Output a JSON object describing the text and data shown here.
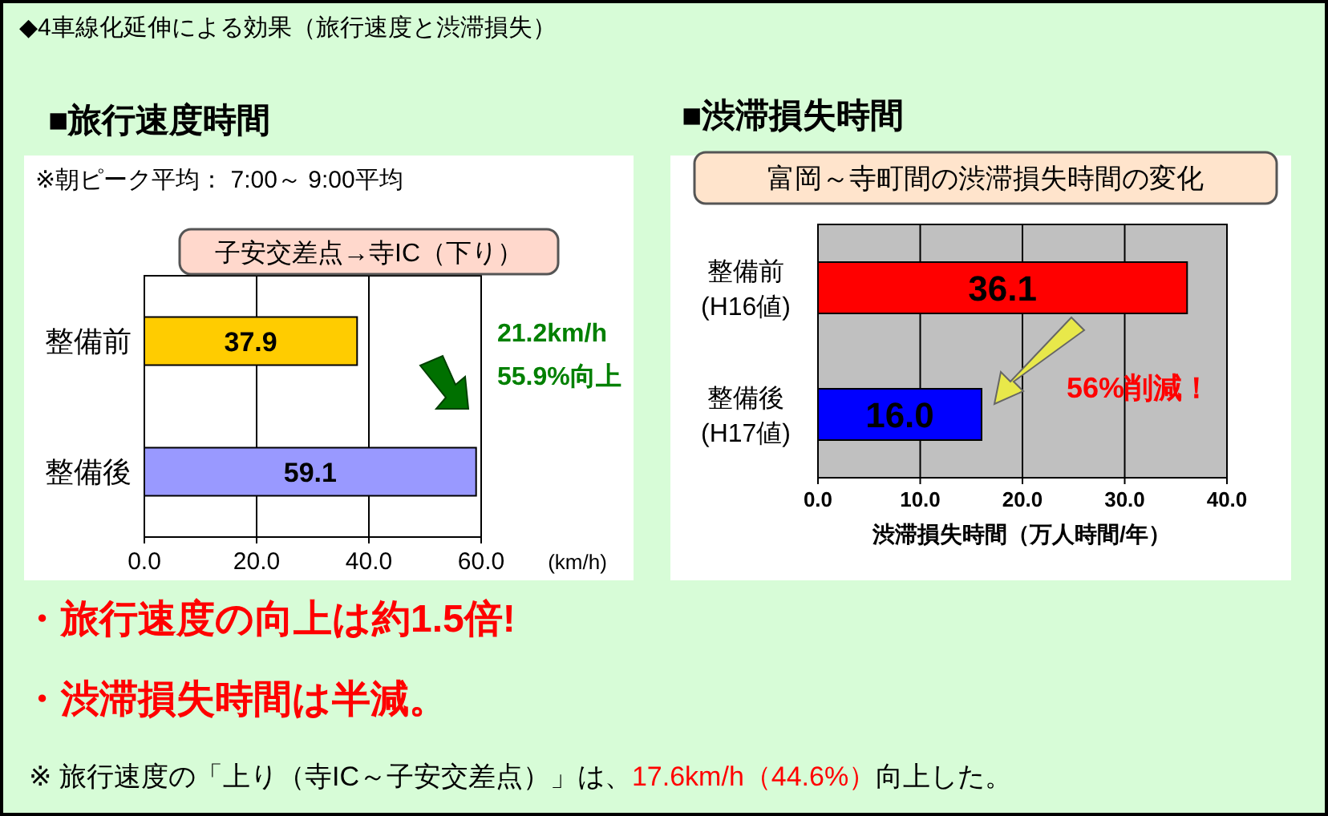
{
  "chart_data": [
    {
      "type": "bar",
      "orientation": "horizontal",
      "title": "■旅行速度時間",
      "subtitle": "※朝ピーク平均： 7:00～ 9:00平均",
      "xlabel": "(km/h)",
      "categories": [
        "整備前",
        "整備後"
      ],
      "values": [
        37.9,
        59.1
      ],
      "colors": [
        "#ffcc00",
        "#9999ff"
      ],
      "xlim": [
        0,
        60
      ],
      "xticks": [
        {
          "value": 0,
          "label": "0.0"
        },
        {
          "value": 20,
          "label": "20.0"
        },
        {
          "value": 40,
          "label": "40.0"
        },
        {
          "value": 60,
          "label": "60.0"
        }
      ],
      "grid": "x",
      "data_labels": true,
      "annotations": [
        "◆4車線化延伸による効果（旅行速度と渋滞損失）",
        "子安交差点→寺IC（下り）",
        "21.2km/h",
        "55.9%向上",
        "・旅行速度の向上は約1.5倍!",
        "・渋滞損失時間は半減。",
        "※ 旅行速度の「上り（寺IC～子安交差点）」は、",
        "17.6km/h（44.6%）",
        "向上した。"
      ]
    },
    {
      "type": "bar",
      "orientation": "horizontal",
      "title": "■渋滞損失時間",
      "subtitle": "富岡～寺町間の渋滞損失時間の変化",
      "xlabel": "渋滞損失時間（万人時間/年）",
      "categories": [
        "整備前(H16値)",
        "整備後(H17値)"
      ],
      "values": [
        36.1,
        16.0
      ],
      "value_labels": [
        "36.1",
        "16.0"
      ],
      "colors": [
        "#ff0000",
        "#0000ff"
      ],
      "xlim": [
        0,
        40
      ],
      "xticks": [
        {
          "value": 0,
          "label": "0.0"
        },
        {
          "value": 10,
          "label": "10.0"
        },
        {
          "value": 20,
          "label": "20.0"
        },
        {
          "value": 30,
          "label": "30.0"
        },
        {
          "value": 40,
          "label": "40.0"
        }
      ],
      "grid": "x",
      "annotations": [
        "56%削減！"
      ]
    }
  ]
}
